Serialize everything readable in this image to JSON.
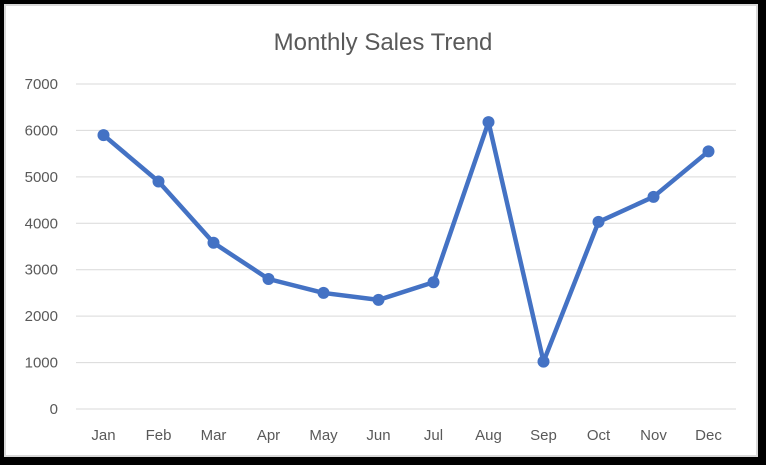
{
  "chart_data": {
    "type": "line",
    "title": "Monthly Sales Trend",
    "xlabel": "",
    "ylabel": "",
    "categories": [
      "Jan",
      "Feb",
      "Mar",
      "Apr",
      "May",
      "Jun",
      "Jul",
      "Aug",
      "Sep",
      "Oct",
      "Nov",
      "Dec"
    ],
    "series": [
      {
        "values": [
          5900,
          4900,
          3580,
          2800,
          2500,
          2350,
          2730,
          6180,
          1020,
          4030,
          4570,
          5550
        ]
      }
    ],
    "ylim": [
      0,
      7000
    ],
    "yticks": [
      0,
      1000,
      2000,
      3000,
      4000,
      5000,
      6000,
      7000
    ],
    "grid": true,
    "legend": "none",
    "colors": {
      "line": "#4472c4",
      "grid": "#d9d9d9",
      "text": "#595959",
      "frame": "#000000"
    }
  }
}
